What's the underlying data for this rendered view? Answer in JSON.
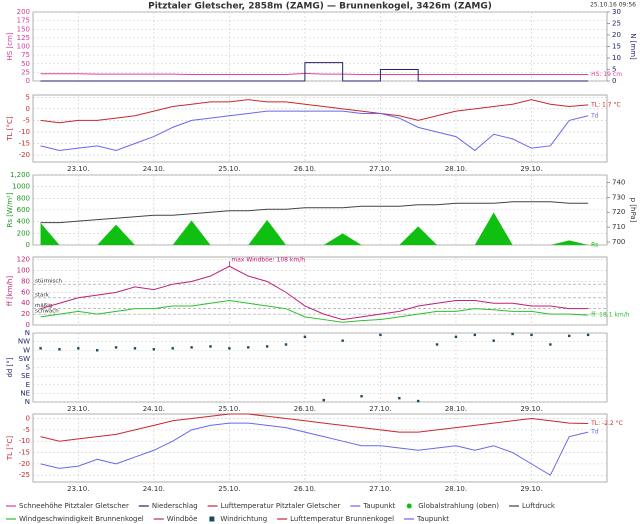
{
  "title": "Pitztaler Gletscher, 2858m (ZAMG) — Brunnenkogel, 3426m (ZAMG)",
  "timestamp": "25.10.16 09:56",
  "chart_data": [
    {
      "type": "line",
      "ylabel": "HS [cm]",
      "ylabel_color": "#d63a9a",
      "y2label": "N [mm]",
      "y2label_color": "#22226e",
      "x": [
        22.5,
        22.75,
        23,
        23.25,
        23.5,
        23.75,
        24,
        24.25,
        24.5,
        24.75,
        25,
        25.25,
        25.5,
        25.75,
        26,
        26.25,
        26.5,
        26.75,
        27,
        27.25,
        27.5,
        27.75,
        28,
        28.25,
        28.5,
        28.75,
        29,
        29.25,
        29.5,
        29.75
      ],
      "xlim": [
        22.4,
        30
      ],
      "xticks": [
        23,
        24,
        25,
        26,
        27,
        28,
        29
      ],
      "ylim": [
        0,
        200
      ],
      "yticks": [
        0,
        25,
        50,
        75,
        100,
        125,
        150,
        175,
        200
      ],
      "y2lim": [
        0,
        30
      ],
      "y2ticks": [
        0,
        5,
        10,
        15,
        20,
        25,
        30
      ],
      "grid": true,
      "series": [
        {
          "name": "Schneehöhe Pitztaler Gletscher",
          "color": "#e0409c",
          "kind": "line",
          "end_label": "HS: 19 cm",
          "values": [
            21,
            21,
            21,
            20,
            20,
            20,
            20,
            20,
            19,
            19,
            19,
            19,
            19,
            19,
            22,
            20,
            20,
            19,
            19,
            19,
            19,
            19,
            19,
            19,
            19,
            19,
            19,
            19,
            19,
            19
          ]
        },
        {
          "name": "Niederschlag",
          "color": "#22226e",
          "kind": "step",
          "axis": "y2",
          "values": [
            0,
            0,
            0,
            0,
            0,
            0,
            0,
            0,
            0,
            0,
            0,
            0,
            0,
            0,
            8,
            8,
            0,
            0,
            5,
            5,
            0,
            0,
            0,
            0,
            0,
            0,
            0,
            0,
            0,
            0
          ]
        }
      ]
    },
    {
      "type": "line",
      "ylabel": "TL [°C]",
      "ylabel_color": "#c8282d",
      "x": [
        22.5,
        22.75,
        23,
        23.25,
        23.5,
        23.75,
        24,
        24.25,
        24.5,
        24.75,
        25,
        25.25,
        25.5,
        25.75,
        26,
        26.25,
        26.5,
        26.75,
        27,
        27.25,
        27.5,
        27.75,
        28,
        28.25,
        28.5,
        28.75,
        29,
        29.25,
        29.5,
        29.75
      ],
      "xlim": [
        22.4,
        30
      ],
      "xticks": [
        {
          "value": 23,
          "label": "23.10."
        },
        {
          "value": 24,
          "label": "24.10."
        },
        {
          "value": 25,
          "label": "25.10."
        },
        {
          "value": 26,
          "label": "26.10."
        },
        {
          "value": 27,
          "label": "27.10."
        },
        {
          "value": 28,
          "label": "28.10."
        },
        {
          "value": 29,
          "label": "29.10."
        }
      ],
      "ylim": [
        -23,
        6
      ],
      "yticks": [
        -20,
        -15,
        -10,
        -5,
        0,
        5
      ],
      "grid": true,
      "series": [
        {
          "name": "Lufttemperatur Pitztaler Gletscher",
          "color": "#c8282d",
          "kind": "line",
          "end_label": "TL: 1.7 °C",
          "values": [
            -5,
            -6,
            -5,
            -5,
            -4,
            -3,
            -1,
            1,
            2,
            3,
            3,
            4,
            3,
            3,
            2,
            1,
            0,
            -1,
            -2,
            -3,
            -5,
            -3,
            -1,
            0,
            1,
            2,
            4,
            2,
            1,
            1.7
          ]
        },
        {
          "name": "Taupunkt",
          "color": "#6868ee",
          "kind": "line",
          "end_label": "Td",
          "values": [
            -16,
            -18,
            -17,
            -16,
            -18,
            -15,
            -12,
            -8,
            -5,
            -4,
            -3,
            -2,
            -1,
            -1,
            -1,
            -1,
            -1,
            -2,
            -2,
            -4,
            -8,
            -10,
            -12,
            -18,
            -11,
            -13,
            -17,
            -16,
            -5,
            -3
          ]
        }
      ]
    },
    {
      "type": "line",
      "ylabel": "Rs [W/m²]",
      "ylabel_color": "#1a9a1a",
      "y2label": "p [hPa]",
      "y2label_color": "#333333",
      "x": [
        22.5,
        22.75,
        23,
        23.25,
        23.5,
        23.75,
        24,
        24.25,
        24.5,
        24.75,
        25,
        25.25,
        25.5,
        25.75,
        26,
        26.25,
        26.5,
        26.75,
        27,
        27.25,
        27.5,
        27.75,
        28,
        28.25,
        28.5,
        28.75,
        29,
        29.25,
        29.5,
        29.75
      ],
      "xlim": [
        22.4,
        30
      ],
      "xticks": [
        23,
        24,
        25,
        26,
        27,
        28,
        29
      ],
      "ylim": [
        0,
        1200
      ],
      "yticks": [
        0,
        200,
        400,
        600,
        800,
        1000,
        {
          "value": 1200,
          "label": "1,200"
        }
      ],
      "y2lim": [
        698,
        745
      ],
      "y2ticks": [
        700,
        710,
        720,
        730,
        740
      ],
      "grid": true,
      "series": [
        {
          "name": "Globalstrahlung (oben)",
          "color": "#10c010",
          "kind": "area",
          "end_label": "Rs",
          "values": [
            380,
            0,
            0,
            0,
            350,
            0,
            0,
            0,
            420,
            0,
            0,
            0,
            430,
            0,
            0,
            0,
            200,
            0,
            0,
            0,
            320,
            0,
            0,
            0,
            560,
            0,
            0,
            0,
            80,
            0
          ]
        },
        {
          "name": "Luftdruck",
          "color": "#444444",
          "kind": "line",
          "axis": "y2",
          "values": [
            713,
            713,
            714,
            715,
            716,
            717,
            718,
            718,
            719,
            720,
            721,
            721,
            722,
            722,
            723,
            723,
            723,
            724,
            724,
            724,
            725,
            725,
            726,
            726,
            726,
            727,
            727,
            727,
            726,
            726
          ]
        }
      ]
    },
    {
      "type": "line",
      "ylabel": "ff [km/h]",
      "ylabel_color": "#c0207a",
      "x": [
        22.5,
        22.75,
        23,
        23.25,
        23.5,
        23.75,
        24,
        24.25,
        24.5,
        24.75,
        25,
        25.25,
        25.5,
        25.75,
        26,
        26.25,
        26.5,
        26.75,
        27,
        27.25,
        27.5,
        27.75,
        28,
        28.25,
        28.5,
        28.75,
        29,
        29.25,
        29.5,
        29.75
      ],
      "xlim": [
        22.4,
        30
      ],
      "xticks": [
        23,
        24,
        25,
        26,
        27,
        28,
        29
      ],
      "ylim": [
        0,
        125
      ],
      "yticks": [
        0,
        20,
        40,
        60,
        80,
        100,
        120
      ],
      "grid": true,
      "levels": [
        {
          "label": "stürmisch",
          "value": 75
        },
        {
          "label": "stark",
          "value": 50
        },
        {
          "label": "mäßig",
          "value": 30
        },
        {
          "label": "schwach",
          "value": 20
        }
      ],
      "series": [
        {
          "name": "Windgeschwindigkeit Brunnenkogel",
          "color": "#2cc02c",
          "kind": "line",
          "end_label": "ff: 18.1 km/h",
          "values": [
            15,
            20,
            25,
            20,
            25,
            30,
            30,
            35,
            35,
            40,
            45,
            40,
            35,
            30,
            15,
            10,
            5,
            8,
            10,
            15,
            20,
            25,
            25,
            30,
            28,
            25,
            25,
            20,
            20,
            18.1
          ]
        },
        {
          "name": "Windböe",
          "color": "#c0207a",
          "kind": "line",
          "max_label": "max Windböe: 108 km/h",
          "values": [
            30,
            40,
            50,
            55,
            60,
            70,
            65,
            75,
            80,
            90,
            108,
            90,
            80,
            60,
            35,
            20,
            10,
            15,
            20,
            25,
            35,
            40,
            45,
            45,
            40,
            40,
            35,
            35,
            30,
            30
          ]
        }
      ]
    },
    {
      "type": "scatter",
      "ylabel": "dd [°]",
      "ylabel_color": "#22226e",
      "x": [
        22.5,
        22.75,
        23,
        23.25,
        23.5,
        23.75,
        24,
        24.25,
        24.5,
        24.75,
        25,
        25.25,
        25.5,
        25.75,
        26,
        26.25,
        26.5,
        26.75,
        27,
        27.25,
        27.5,
        27.75,
        28,
        28.25,
        28.5,
        28.75,
        29,
        29.25,
        29.5,
        29.75
      ],
      "xlim": [
        22.4,
        30
      ],
      "xticks": [
        {
          "value": 23,
          "label": "23.10."
        },
        {
          "value": 24,
          "label": "24.10."
        },
        {
          "value": 25,
          "label": "25.10."
        },
        {
          "value": 26,
          "label": "26.10."
        },
        {
          "value": 27,
          "label": "27.10."
        },
        {
          "value": 28,
          "label": "28.10."
        },
        {
          "value": 29,
          "label": "29.10."
        }
      ],
      "ylim": [
        0,
        360
      ],
      "yticks": [
        {
          "value": 0,
          "label": "N"
        },
        {
          "value": 45,
          "label": "NE"
        },
        {
          "value": 90,
          "label": "E"
        },
        {
          "value": 135,
          "label": "SE"
        },
        {
          "value": 180,
          "label": "S"
        },
        {
          "value": 225,
          "label": "SW"
        },
        {
          "value": 270,
          "label": "W"
        },
        {
          "value": 315,
          "label": "NW"
        },
        {
          "value": 360,
          "label": "N"
        }
      ],
      "grid": true,
      "series": [
        {
          "name": "Windrichtung",
          "color": "#1a4a66",
          "kind": "scatter",
          "values": [
            280,
            275,
            280,
            270,
            285,
            280,
            275,
            280,
            285,
            290,
            280,
            285,
            290,
            300,
            340,
            10,
            320,
            30,
            350,
            20,
            5,
            300,
            340,
            350,
            320,
            355,
            350,
            300,
            345,
            350
          ]
        }
      ]
    },
    {
      "type": "line",
      "ylabel": "TL [°C]",
      "ylabel_color": "#c8282d",
      "x": [
        22.5,
        22.75,
        23,
        23.25,
        23.5,
        23.75,
        24,
        24.25,
        24.5,
        24.75,
        25,
        25.25,
        25.5,
        25.75,
        26,
        26.25,
        26.5,
        26.75,
        27,
        27.25,
        27.5,
        27.75,
        28,
        28.25,
        28.5,
        28.75,
        29,
        29.25,
        29.5,
        29.75
      ],
      "xlim": [
        22.4,
        30
      ],
      "xticks": [
        {
          "value": 23,
          "label": "23.10."
        },
        {
          "value": 24,
          "label": "24.10."
        },
        {
          "value": 25,
          "label": "25.10."
        },
        {
          "value": 26,
          "label": "26.10."
        },
        {
          "value": 27,
          "label": "27.10."
        },
        {
          "value": 28,
          "label": "28.10."
        },
        {
          "value": 29,
          "label": "29.10."
        }
      ],
      "ylim": [
        -28,
        2
      ],
      "yticks": [
        -25,
        -20,
        -15,
        -10,
        -5,
        0
      ],
      "grid": true,
      "series": [
        {
          "name": "Lufttemperatur Brunnenkogel",
          "color": "#c8282d",
          "kind": "line",
          "end_label": "TL: -2.2 °C",
          "values": [
            -8,
            -10,
            -9,
            -8,
            -7,
            -5,
            -3,
            -1,
            0,
            1,
            2,
            2,
            1,
            0,
            -1,
            -2,
            -3,
            -4,
            -5,
            -6,
            -6,
            -5,
            -4,
            -3,
            -2,
            -1,
            0,
            -1,
            -2,
            -2.2
          ]
        },
        {
          "name": "Taupunkt",
          "color": "#6868ee",
          "kind": "line",
          "end_label": "Td",
          "values": [
            -20,
            -22,
            -21,
            -18,
            -20,
            -17,
            -14,
            -10,
            -5,
            -3,
            -2,
            -2,
            -3,
            -4,
            -6,
            -8,
            -10,
            -12,
            -12,
            -13,
            -14,
            -13,
            -12,
            -14,
            -12,
            -15,
            -20,
            -25,
            -8,
            -6
          ]
        }
      ]
    }
  ]
}
